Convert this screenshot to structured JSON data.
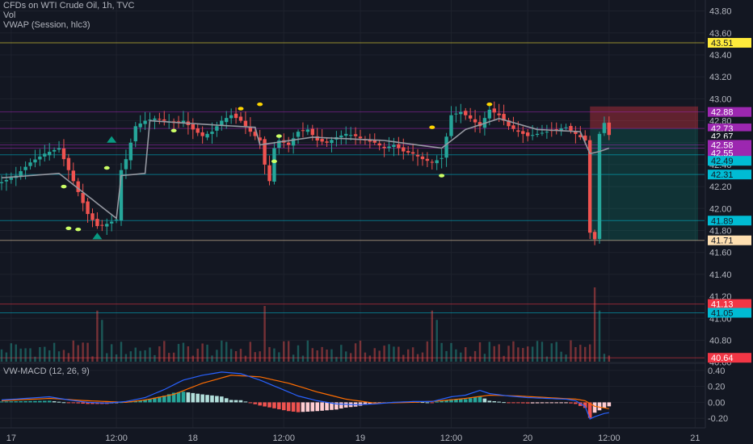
{
  "header": {
    "symbol_line": "CFDs on WTI Crude Oil, 1h, TVC",
    "vol_label": "Vol",
    "vwap_label": "VWAP (Session, hlc3)",
    "macd_label": "VW-MACD (12, 26, 9)"
  },
  "colors": {
    "background": "#131722",
    "up": "#26a69a",
    "down": "#ef5350",
    "vwap": "#9598a1",
    "macd": "#2962ff",
    "signal": "#ff6d00",
    "hist_up": "#26a69a",
    "hist_down": "#ef5350",
    "signal_dot_green": "#ccff66",
    "signal_dot_yellow": "#ffd600"
  },
  "chart_data": [
    {
      "type": "candlestick",
      "title": "CFDs on WTI Crude Oil, 1h, TVC",
      "indicator": "VWAP (Session, hlc3)",
      "x_ticks": [
        "17",
        "12:00",
        "18",
        "12:00",
        "19",
        "12:00",
        "20",
        "12:00",
        "21"
      ],
      "y_ticks": [
        "43.80",
        "43.60",
        "43.40",
        "43.20",
        "43.00",
        "42.80",
        "42.60",
        "42.40",
        "42.20",
        "42.00",
        "41.80",
        "41.60",
        "41.40",
        "41.20",
        "41.00",
        "40.80",
        "40.60"
      ],
      "ylim": [
        40.59,
        43.9
      ],
      "price_tags": [
        {
          "label": "43.51",
          "value": 43.51,
          "bg": "#ffeb3b",
          "fg": "#131722"
        },
        {
          "label": "42.88",
          "value": 42.88,
          "bg": "#9c27b0",
          "fg": "#ffffff"
        },
        {
          "label": "42.73",
          "value": 42.73,
          "bg": "#9c27b0",
          "fg": "#ffffff"
        },
        {
          "label": "42.67",
          "value": 42.66,
          "bg": "#131722",
          "fg": "#ffffff"
        },
        {
          "label": "27:01",
          "value": 42.595,
          "bg": "#131722",
          "fg": "#ffffff"
        },
        {
          "label": "42.58",
          "value": 42.58,
          "bg": "#9c27b0",
          "fg": "#ffffff"
        },
        {
          "label": "42.55",
          "value": 42.505,
          "bg": "#9c27b0",
          "fg": "#ffffff"
        },
        {
          "label": "42.49",
          "value": 42.435,
          "bg": "#00bcd4",
          "fg": "#131722"
        },
        {
          "label": "42.31",
          "value": 42.31,
          "bg": "#00bcd4",
          "fg": "#131722"
        },
        {
          "label": "41.89",
          "value": 41.89,
          "bg": "#00bcd4",
          "fg": "#131722"
        },
        {
          "label": "41.71",
          "value": 41.71,
          "bg": "#ffe0b2",
          "fg": "#131722"
        },
        {
          "label": "41.13",
          "value": 41.13,
          "bg": "#f23645",
          "fg": "#ffffff"
        },
        {
          "label": "41.05",
          "value": 41.05,
          "bg": "#00bcd4",
          "fg": "#131722"
        },
        {
          "label": "40.64",
          "value": 40.64,
          "bg": "#f23645",
          "fg": "#ffffff"
        }
      ],
      "horizontal_levels": [
        {
          "value": 43.51,
          "color": "#ffeb3b"
        },
        {
          "value": 42.88,
          "color": "#9c27b0"
        },
        {
          "value": 42.73,
          "color": "#9c27b0"
        },
        {
          "value": 42.58,
          "color": "#9c27b0"
        },
        {
          "value": 42.55,
          "color": "#9c27b0"
        },
        {
          "value": 42.49,
          "color": "#00bcd4"
        },
        {
          "value": 42.31,
          "color": "#00bcd4"
        },
        {
          "value": 41.89,
          "color": "#00bcd4"
        },
        {
          "value": 41.71,
          "color": "#ffe0b2"
        },
        {
          "value": 41.13,
          "color": "#f23645"
        },
        {
          "value": 41.05,
          "color": "#00bcd4"
        },
        {
          "value": 40.64,
          "color": "#f23645"
        }
      ],
      "position_zone": {
        "entry": 42.73,
        "stop": 42.93,
        "target": 41.71
      },
      "close_points": [
        [
          0,
          42.24
        ],
        [
          3,
          42.3
        ],
        [
          6,
          42.42
        ],
        [
          9,
          42.5
        ],
        [
          12,
          42.55
        ],
        [
          14,
          42.35
        ],
        [
          16,
          42.15
        ],
        [
          18,
          41.95
        ],
        [
          20,
          41.84
        ],
        [
          22,
          41.86
        ],
        [
          24,
          41.9
        ],
        [
          25,
          42.35
        ],
        [
          26,
          42.45
        ],
        [
          28,
          42.75
        ],
        [
          30,
          42.8
        ],
        [
          32,
          42.82
        ],
        [
          34,
          42.8
        ],
        [
          36,
          42.78
        ],
        [
          38,
          42.8
        ],
        [
          40,
          42.72
        ],
        [
          42,
          42.66
        ],
        [
          44,
          42.7
        ],
        [
          46,
          42.8
        ],
        [
          48,
          42.85
        ],
        [
          50,
          42.8
        ],
        [
          52,
          42.7
        ],
        [
          54,
          42.62
        ],
        [
          55,
          42.4
        ],
        [
          56,
          42.25
        ],
        [
          57,
          42.55
        ],
        [
          58,
          42.62
        ],
        [
          60,
          42.58
        ],
        [
          62,
          42.7
        ],
        [
          64,
          42.72
        ],
        [
          66,
          42.62
        ],
        [
          68,
          42.6
        ],
        [
          70,
          42.65
        ],
        [
          72,
          42.68
        ],
        [
          74,
          42.66
        ],
        [
          76,
          42.62
        ],
        [
          78,
          42.6
        ],
        [
          80,
          42.55
        ],
        [
          82,
          42.58
        ],
        [
          84,
          42.52
        ],
        [
          86,
          42.5
        ],
        [
          88,
          42.45
        ],
        [
          90,
          42.42
        ],
        [
          92,
          42.46
        ],
        [
          94,
          42.85
        ],
        [
          96,
          42.88
        ],
        [
          98,
          42.82
        ],
        [
          100,
          42.75
        ],
        [
          102,
          42.9
        ],
        [
          104,
          42.85
        ],
        [
          106,
          42.75
        ],
        [
          108,
          42.7
        ],
        [
          110,
          42.66
        ],
        [
          112,
          42.68
        ],
        [
          114,
          42.7
        ],
        [
          116,
          42.72
        ],
        [
          118,
          42.74
        ],
        [
          120,
          42.68
        ],
        [
          122,
          42.62
        ],
        [
          123,
          41.78
        ],
        [
          124,
          41.72
        ],
        [
          125,
          42.68
        ],
        [
          126,
          42.78
        ],
        [
          127,
          42.67
        ]
      ],
      "vwap_points": [
        [
          0,
          42.28
        ],
        [
          12,
          42.32
        ],
        [
          24,
          41.91
        ],
        [
          25,
          42.3
        ],
        [
          30,
          42.32
        ],
        [
          31,
          42.8
        ],
        [
          45,
          42.76
        ],
        [
          53,
          42.74
        ],
        [
          54,
          42.58
        ],
        [
          65,
          42.65
        ],
        [
          80,
          42.62
        ],
        [
          92,
          42.55
        ],
        [
          97,
          42.72
        ],
        [
          104,
          42.82
        ],
        [
          112,
          42.72
        ],
        [
          121,
          42.7
        ],
        [
          123,
          42.5
        ],
        [
          125,
          42.52
        ],
        [
          127,
          42.55
        ]
      ],
      "volume_spikes": [
        [
          20,
          0.55
        ],
        [
          21,
          0.45
        ],
        [
          55,
          0.6
        ],
        [
          90,
          0.55
        ],
        [
          91,
          0.45
        ],
        [
          124,
          0.8
        ],
        [
          125,
          0.55
        ]
      ]
    },
    {
      "type": "macd",
      "title": "VW-MACD (12, 26, 9)",
      "y_ticks": [
        "0.40",
        "0.20",
        "0.00",
        "-0.20"
      ],
      "ylim": [
        -0.32,
        0.48
      ],
      "macd": [
        [
          0,
          0.03
        ],
        [
          5,
          0.05
        ],
        [
          10,
          0.07
        ],
        [
          14,
          0.03
        ],
        [
          18,
          0.0
        ],
        [
          22,
          -0.01
        ],
        [
          26,
          0.01
        ],
        [
          30,
          0.06
        ],
        [
          34,
          0.16
        ],
        [
          38,
          0.28
        ],
        [
          42,
          0.34
        ],
        [
          46,
          0.38
        ],
        [
          50,
          0.36
        ],
        [
          54,
          0.28
        ],
        [
          58,
          0.18
        ],
        [
          62,
          0.08
        ],
        [
          66,
          0.02
        ],
        [
          70,
          -0.02
        ],
        [
          74,
          -0.03
        ],
        [
          78,
          -0.02
        ],
        [
          82,
          0.0
        ],
        [
          86,
          0.01
        ],
        [
          90,
          0.01
        ],
        [
          94,
          0.07
        ],
        [
          97,
          0.09
        ],
        [
          100,
          0.15
        ],
        [
          102,
          0.11
        ],
        [
          106,
          0.08
        ],
        [
          110,
          0.06
        ],
        [
          114,
          0.05
        ],
        [
          118,
          0.04
        ],
        [
          120,
          0.02
        ],
        [
          122,
          -0.05
        ],
        [
          123,
          -0.21
        ],
        [
          124,
          -0.18
        ],
        [
          126,
          -0.14
        ],
        [
          127,
          -0.13
        ]
      ],
      "signal": [
        [
          0,
          0.02
        ],
        [
          10,
          0.05
        ],
        [
          18,
          0.02
        ],
        [
          26,
          0.0
        ],
        [
          30,
          0.03
        ],
        [
          36,
          0.1
        ],
        [
          42,
          0.24
        ],
        [
          48,
          0.34
        ],
        [
          54,
          0.32
        ],
        [
          60,
          0.24
        ],
        [
          66,
          0.13
        ],
        [
          72,
          0.04
        ],
        [
          78,
          -0.01
        ],
        [
          86,
          0.0
        ],
        [
          92,
          0.02
        ],
        [
          97,
          0.05
        ],
        [
          102,
          0.09
        ],
        [
          108,
          0.08
        ],
        [
          114,
          0.06
        ],
        [
          120,
          0.04
        ],
        [
          122,
          0.02
        ],
        [
          124,
          -0.05
        ],
        [
          127,
          -0.08
        ]
      ]
    }
  ]
}
